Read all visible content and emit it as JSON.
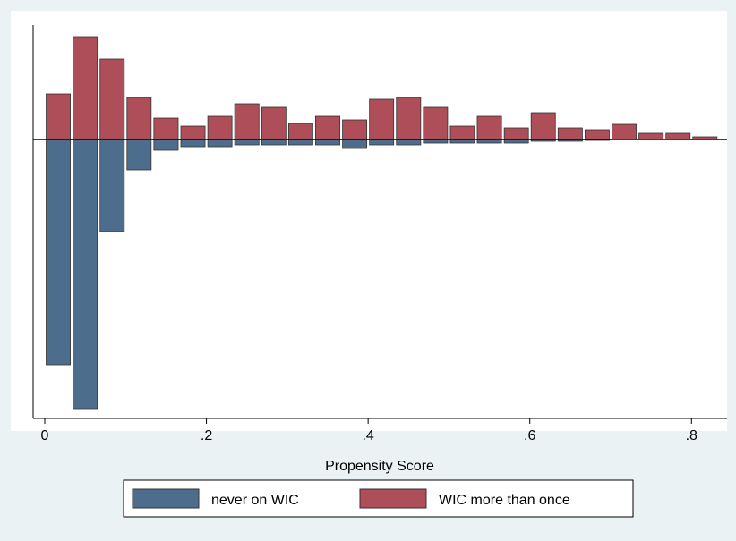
{
  "chart_data": {
    "type": "mirrored-histogram",
    "xlabel": "Propensity Score",
    "bins": [
      0,
      0.0333,
      0.0667,
      0.1,
      0.1333,
      0.1667,
      0.2,
      0.2333,
      0.2667,
      0.3,
      0.3333,
      0.3667,
      0.4,
      0.4333,
      0.4667,
      0.5,
      0.5333,
      0.5667,
      0.6,
      0.6333,
      0.6667,
      0.7,
      0.7333,
      0.7667,
      0.8,
      0.8333
    ],
    "series": [
      {
        "name": "never on WIC",
        "color": "#4d6d8d",
        "values": [
          -252,
          -301,
          -103,
          -34,
          -12,
          -8,
          -8,
          -6,
          -6,
          -6,
          -6,
          -10,
          -6,
          -6,
          -4,
          -4,
          -4,
          -4,
          -2,
          -2,
          -1,
          0,
          0,
          0,
          0
        ]
      },
      {
        "name": "WIC more than once",
        "color": "#ad4e58",
        "values": [
          51,
          115,
          90,
          47,
          24,
          15,
          26,
          40,
          36,
          18,
          26,
          22,
          45,
          47,
          36,
          15,
          26,
          13,
          30,
          13,
          11,
          17,
          7,
          7,
          3
        ]
      }
    ],
    "xlim": [
      -0.0144,
      0.844
    ],
    "ylim": [
      -312,
      128
    ],
    "xticks": [
      0,
      {
        "value": 0.2,
        "label": ".2"
      },
      {
        "value": 0.4,
        "label": ".4"
      },
      {
        "value": 0.6,
        "label": ".6"
      },
      {
        "value": 0.8,
        "label": ".8"
      }
    ],
    "legend": "bottom"
  }
}
